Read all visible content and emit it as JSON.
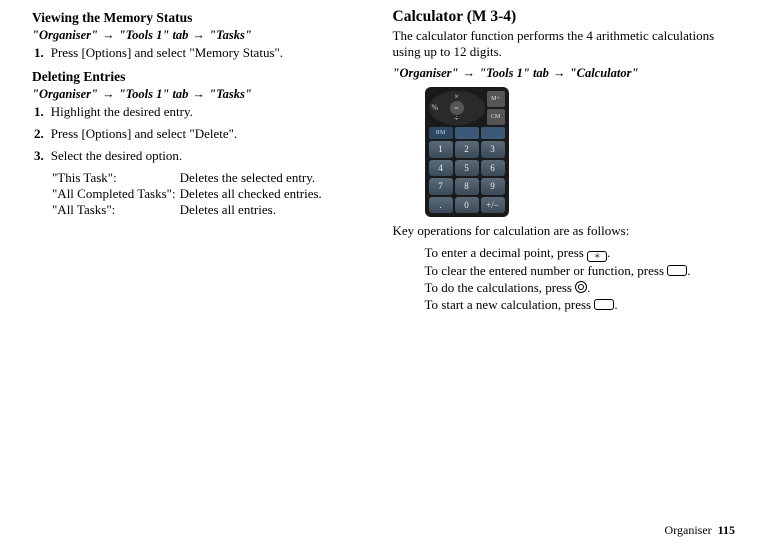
{
  "left": {
    "sec1": {
      "heading": "Viewing the Memory Status",
      "path_parts": [
        "\"Organiser\"",
        "\"Tools 1\" tab",
        "\"Tasks\""
      ],
      "step1_num": "1.",
      "step1_text": "Press [Options] and select \"Memory Status\"."
    },
    "sec2": {
      "heading": "Deleting Entries",
      "path_parts": [
        "\"Organiser\"",
        "\"Tools 1\" tab",
        "\"Tasks\""
      ],
      "step1_num": "1.",
      "step1_text": "Highlight the desired entry.",
      "step2_num": "2.",
      "step2_text": "Press [Options] and select \"Delete\".",
      "step3_num": "3.",
      "step3_text": "Select the desired option.",
      "opts": [
        {
          "k": "\"This Task\":",
          "v": "Deletes the selected entry."
        },
        {
          "k": "\"All Completed Tasks\":",
          "v": "Deletes all checked entries."
        },
        {
          "k": "\"All Tasks\":",
          "v": "Deletes all entries."
        }
      ]
    }
  },
  "right": {
    "heading": "Calculator",
    "heading_annot": " (M 3-4)",
    "intro": "The calculator function performs the 4 arithmetic calculations using up to 12 digits.",
    "path_parts": [
      "\"Organiser\"",
      "\"Tools 1\" tab",
      "\"Calculator\""
    ],
    "calc": {
      "top_side": [
        "M+",
        "CM"
      ],
      "top_syms": {
        "t": "×",
        "b": "÷",
        "l": "%",
        "r": "",
        "c": "="
      },
      "rm_row": [
        "RM",
        "",
        ""
      ],
      "keys": [
        "1",
        "2",
        "3",
        "4",
        "5",
        "6",
        "7",
        "8",
        "9",
        ".",
        "0",
        "+/−"
      ]
    },
    "keyops_intro": "Key operations for calculation are as follows:",
    "keyops": [
      {
        "pre": "To enter a decimal point, press ",
        "icon": "star",
        "post": "."
      },
      {
        "pre": "To clear the entered number or function, press ",
        "icon": "rect",
        "post": "."
      },
      {
        "pre": "To do the calculations, press ",
        "icon": "round",
        "post": "."
      },
      {
        "pre": "To start a new calculation, press ",
        "icon": "rect",
        "post": "."
      }
    ]
  },
  "footer": {
    "label": "Organiser",
    "page": "115"
  },
  "arrow": "→",
  "icons": {
    "star": "＊",
    "rect": "",
    "round": ""
  }
}
